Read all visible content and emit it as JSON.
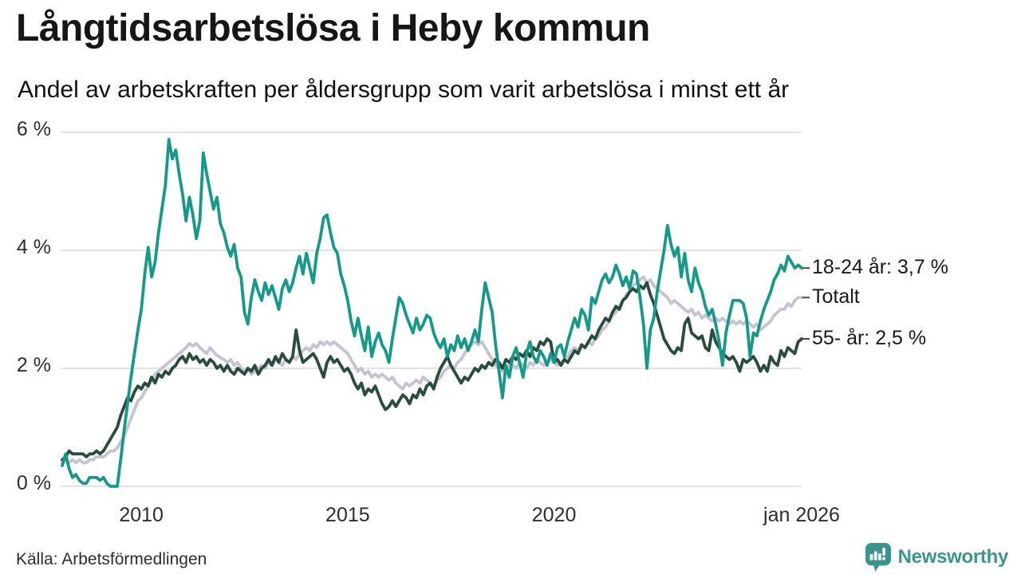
{
  "header": {
    "title": "Långtidsarbetslösa i Heby kommun",
    "subtitle": "Andel av arbetskraften per åldersgrupp som varit arbetslösa i minst ett år"
  },
  "source": {
    "label": "Källa: Arbetsförmedlingen"
  },
  "branding": {
    "name": "Newsworthy",
    "color": "#38968c"
  },
  "colors": {
    "grid": "#e3e2e7",
    "tick_dash": "#4a4a4a",
    "text": "#1b1b1b"
  },
  "chart_data": {
    "type": "line",
    "title": "Långtidsarbetslösa i Heby kommun",
    "subtitle": "Andel av arbetskraften per åldersgrupp som varit arbetslösa i minst ett år",
    "unit": "%",
    "ylim": [
      0,
      6
    ],
    "grid": "horizontal",
    "legend_position": "right-of-line-ends",
    "x_start": "2008-02",
    "x_end": "2026-01",
    "y_ticks": [
      {
        "label": "6 %",
        "value": 6
      },
      {
        "label": "4 %",
        "value": 4
      },
      {
        "label": "2 %",
        "value": 2
      },
      {
        "label": "0 %",
        "value": 0
      }
    ],
    "x_ticks": [
      {
        "label": "2010",
        "month_index": 23
      },
      {
        "label": "2015",
        "month_index": 83
      },
      {
        "label": "2020",
        "month_index": 143
      },
      {
        "label": "jan 2026",
        "month_index": 215
      }
    ],
    "series": [
      {
        "name": "18-24 år",
        "label": "18-24 år: 3,7 %",
        "last_value_label": "3,7 %",
        "color": "#17998a",
        "values": [
          0.35,
          0.55,
          0.3,
          0.15,
          0.2,
          0.1,
          0.05,
          0.05,
          0.15,
          0.15,
          0.15,
          0.1,
          0.15,
          0.05,
          0.0,
          0.0,
          0.0,
          0.45,
          0.95,
          1.4,
          1.85,
          2.25,
          2.65,
          3.0,
          3.6,
          4.05,
          3.55,
          3.8,
          4.3,
          4.7,
          5.1,
          5.88,
          5.55,
          5.7,
          5.3,
          4.95,
          4.5,
          4.9,
          4.6,
          4.2,
          4.5,
          5.65,
          5.3,
          5.0,
          4.7,
          4.9,
          4.45,
          4.3,
          4.05,
          3.9,
          4.1,
          3.7,
          3.55,
          2.95,
          2.75,
          3.2,
          3.5,
          3.3,
          3.15,
          3.45,
          3.25,
          3.4,
          3.2,
          3.0,
          3.35,
          3.5,
          3.3,
          3.45,
          3.7,
          3.9,
          3.6,
          3.95,
          3.7,
          3.45,
          3.95,
          4.2,
          4.55,
          4.6,
          4.3,
          4.05,
          3.95,
          3.6,
          3.4,
          3.15,
          2.8,
          2.55,
          2.85,
          2.55,
          2.3,
          2.7,
          2.2,
          2.45,
          2.6,
          2.4,
          2.3,
          2.1,
          2.5,
          2.85,
          3.2,
          3.1,
          2.9,
          2.75,
          2.6,
          2.85,
          2.65,
          2.75,
          2.9,
          2.85,
          2.6,
          2.45,
          2.35,
          2.5,
          2.2,
          2.4,
          2.3,
          2.55,
          2.35,
          2.5,
          2.3,
          2.45,
          2.65,
          2.45,
          3.0,
          3.45,
          3.2,
          2.95,
          2.4,
          1.95,
          1.5,
          2.05,
          1.85,
          2.2,
          2.35,
          2.1,
          1.85,
          2.25,
          2.45,
          2.2,
          2.1,
          2.3,
          2.2,
          2.05,
          2.25,
          2.1,
          2.35,
          2.4,
          2.2,
          2.45,
          2.65,
          2.85,
          2.7,
          3.0,
          2.9,
          2.65,
          3.2,
          3.1,
          3.3,
          3.5,
          3.6,
          3.45,
          3.55,
          3.75,
          3.6,
          3.4,
          3.55,
          3.35,
          3.65,
          3.6,
          3.2,
          2.75,
          2.0,
          2.65,
          2.85,
          3.3,
          3.65,
          4.0,
          4.42,
          4.1,
          3.9,
          4.05,
          3.55,
          3.95,
          3.5,
          3.3,
          3.7,
          3.45,
          3.3,
          3.05,
          2.9,
          3.0,
          2.75,
          2.45,
          2.05,
          2.6,
          2.9,
          3.15,
          3.15,
          3.15,
          3.1,
          2.85,
          2.2,
          2.6,
          2.55,
          2.8,
          3.0,
          3.15,
          3.3,
          3.5,
          3.6,
          3.75,
          3.65,
          3.9,
          3.8,
          3.7,
          3.75,
          3.7
        ]
      },
      {
        "name": "Totalt",
        "label": "Totalt",
        "last_value_label": "",
        "color": "#c5c3d1",
        "values": [
          0.4,
          0.45,
          0.4,
          0.45,
          0.4,
          0.45,
          0.4,
          0.4,
          0.45,
          0.45,
          0.5,
          0.5,
          0.5,
          0.55,
          0.6,
          0.6,
          0.65,
          0.75,
          0.85,
          1.0,
          1.15,
          1.3,
          1.45,
          1.5,
          1.6,
          1.7,
          1.8,
          1.9,
          1.95,
          2.0,
          2.05,
          2.1,
          2.15,
          2.2,
          2.25,
          2.3,
          2.35,
          2.42,
          2.38,
          2.42,
          2.35,
          2.3,
          2.25,
          2.35,
          2.28,
          2.22,
          2.18,
          2.15,
          2.1,
          2.15,
          2.05,
          2.1,
          2.0,
          1.95,
          2.0,
          1.9,
          1.95,
          2.0,
          2.05,
          2.0,
          2.1,
          2.05,
          2.15,
          2.1,
          2.05,
          2.15,
          2.1,
          2.2,
          2.15,
          2.25,
          2.3,
          2.35,
          2.3,
          2.4,
          2.35,
          2.45,
          2.4,
          2.45,
          2.4,
          2.45,
          2.4,
          2.35,
          2.3,
          2.25,
          2.15,
          2.05,
          1.95,
          2.0,
          1.9,
          1.95,
          1.85,
          1.9,
          1.85,
          1.9,
          1.85,
          1.8,
          1.85,
          1.75,
          1.7,
          1.65,
          1.75,
          1.7,
          1.75,
          1.8,
          1.75,
          1.85,
          1.8,
          1.75,
          1.7,
          1.8,
          1.85,
          1.95,
          2.0,
          2.05,
          2.0,
          2.1,
          2.15,
          2.25,
          2.35,
          2.4,
          2.45,
          2.4,
          2.45,
          2.35,
          2.25,
          2.15,
          2.05,
          2.0,
          1.95,
          2.0,
          2.05,
          2.05,
          2.0,
          2.1,
          2.05,
          2.0,
          2.1,
          2.05,
          2.15,
          2.1,
          2.05,
          2.1,
          2.15,
          2.1,
          2.05,
          2.1,
          2.15,
          2.2,
          2.3,
          2.35,
          2.3,
          2.4,
          2.35,
          2.45,
          2.4,
          2.5,
          2.55,
          2.65,
          2.7,
          2.8,
          2.9,
          2.95,
          3.05,
          3.15,
          3.25,
          3.3,
          3.4,
          3.45,
          3.5,
          3.55,
          3.45,
          3.5,
          3.4,
          3.35,
          3.3,
          3.25,
          3.2,
          3.1,
          3.15,
          3.1,
          3.05,
          3.0,
          2.95,
          3.0,
          2.9,
          2.95,
          2.85,
          2.9,
          2.85,
          2.8,
          2.85,
          2.8,
          2.85,
          2.8,
          2.75,
          2.8,
          2.75,
          2.8,
          2.75,
          2.8,
          2.75,
          2.7,
          2.75,
          2.65,
          2.7,
          2.75,
          2.8,
          2.9,
          2.95,
          3.0,
          3.0,
          3.1,
          3.05,
          3.15,
          3.2,
          3.2
        ]
      },
      {
        "name": "55- år",
        "label": "55- år: 2,5 %",
        "last_value_label": "2,5 %",
        "color": "#2a4c40",
        "values": [
          0.45,
          0.5,
          0.6,
          0.55,
          0.55,
          0.55,
          0.55,
          0.5,
          0.55,
          0.55,
          0.6,
          0.55,
          0.6,
          0.7,
          0.8,
          0.9,
          1.0,
          1.2,
          1.35,
          1.5,
          1.45,
          1.6,
          1.7,
          1.65,
          1.75,
          1.7,
          1.85,
          1.75,
          1.9,
          1.85,
          1.95,
          1.9,
          2.0,
          2.05,
          2.15,
          2.2,
          2.1,
          2.25,
          2.15,
          2.2,
          2.1,
          2.15,
          2.05,
          2.15,
          2.1,
          2.0,
          2.05,
          1.95,
          2.05,
          1.95,
          1.9,
          2.0,
          1.95,
          1.9,
          2.0,
          1.95,
          2.05,
          1.9,
          2.0,
          2.05,
          2.15,
          2.05,
          2.2,
          2.1,
          2.25,
          2.15,
          2.1,
          2.2,
          2.65,
          2.3,
          2.1,
          2.15,
          2.2,
          2.25,
          2.15,
          2.0,
          1.85,
          2.1,
          2.2,
          2.1,
          2.15,
          2.05,
          1.95,
          2.0,
          1.9,
          1.75,
          1.65,
          1.75,
          1.55,
          1.65,
          1.6,
          1.7,
          1.55,
          1.4,
          1.3,
          1.35,
          1.45,
          1.35,
          1.45,
          1.55,
          1.5,
          1.4,
          1.55,
          1.5,
          1.65,
          1.55,
          1.7,
          1.75,
          1.65,
          1.85,
          2.0,
          2.1,
          2.2,
          2.05,
          1.95,
          1.85,
          1.75,
          1.85,
          1.8,
          1.9,
          2.0,
          1.95,
          2.05,
          2.0,
          2.1,
          2.05,
          2.15,
          2.1,
          2.0,
          2.15,
          2.1,
          2.2,
          2.15,
          2.25,
          2.2,
          2.3,
          2.2,
          2.35,
          2.3,
          2.45,
          2.4,
          2.5,
          2.45,
          2.1,
          2.15,
          2.05,
          2.15,
          2.1,
          2.2,
          2.3,
          2.25,
          2.4,
          2.35,
          2.45,
          2.55,
          2.5,
          2.65,
          2.75,
          2.85,
          2.8,
          2.95,
          3.05,
          3.0,
          3.15,
          3.2,
          3.3,
          3.35,
          3.3,
          3.4,
          3.35,
          3.45,
          3.25,
          3.1,
          2.9,
          2.7,
          2.5,
          2.4,
          2.3,
          2.25,
          2.35,
          2.3,
          2.75,
          2.85,
          2.6,
          2.55,
          2.5,
          2.55,
          2.35,
          2.3,
          2.65,
          2.45,
          2.35,
          2.25,
          2.2,
          2.15,
          2.2,
          2.1,
          1.95,
          2.15,
          2.1,
          2.15,
          2.2,
          2.1,
          1.95,
          2.05,
          1.95,
          2.2,
          2.1,
          2.05,
          2.3,
          2.2,
          2.35,
          2.3,
          2.25,
          2.45,
          2.5
        ]
      }
    ]
  }
}
